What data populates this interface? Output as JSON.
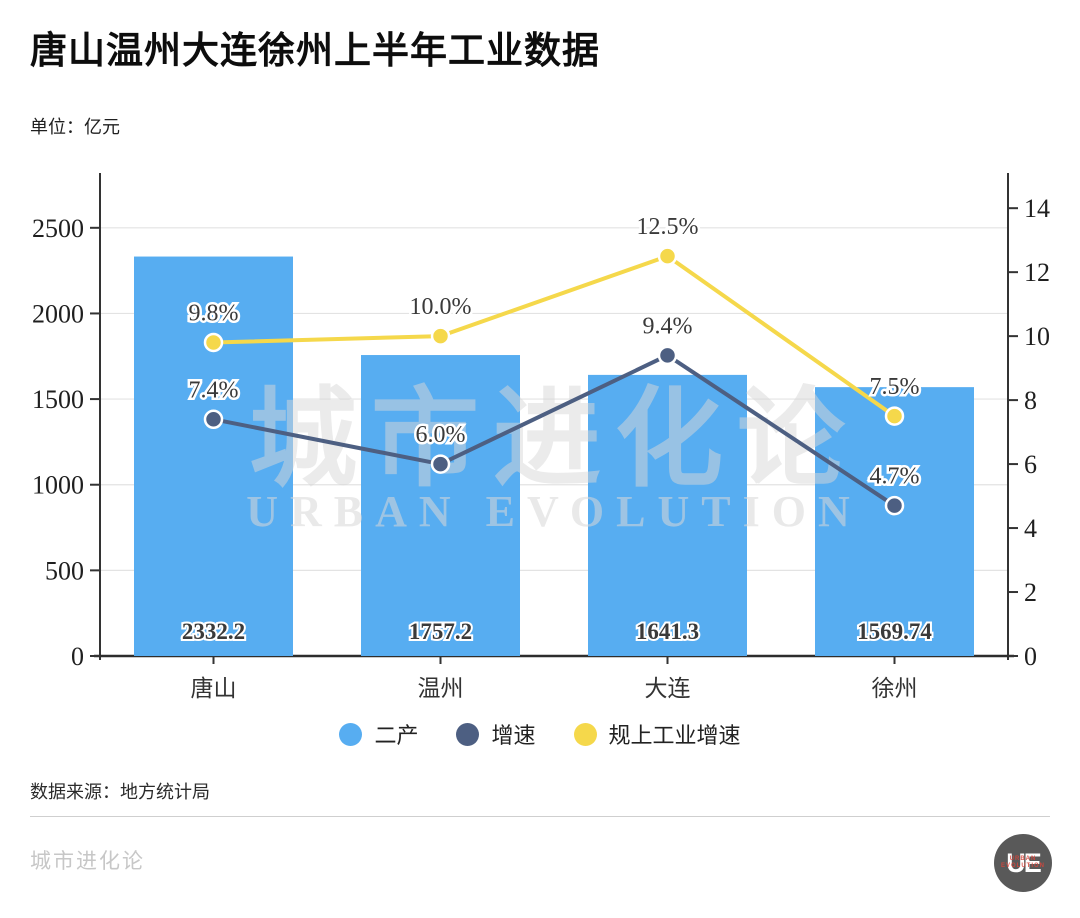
{
  "header": {
    "title": "唐山温州大连徐州上半年工业数据",
    "unit_label": "单位：亿元"
  },
  "chart_data": {
    "type": "bar",
    "title": "唐山温州大连徐州上半年工业数据",
    "categories": [
      "唐山",
      "温州",
      "大连",
      "徐州"
    ],
    "series": [
      {
        "name": "二产",
        "type": "bar",
        "axis": "left",
        "color": "#57adf1",
        "values": [
          2332.2,
          1757.2,
          1641.3,
          1569.74
        ],
        "labels": [
          "2332.2",
          "1757.2",
          "1641.3",
          "1569.74"
        ]
      },
      {
        "name": "增速",
        "type": "line",
        "axis": "right",
        "color": "#4d5f82",
        "values": [
          7.4,
          6.0,
          9.4,
          4.7
        ],
        "labels": [
          "7.4%",
          "6.0%",
          "9.4%",
          "4.7%"
        ]
      },
      {
        "name": "规上工业增速",
        "type": "line",
        "axis": "right",
        "color": "#f5d84b",
        "values": [
          9.8,
          10.0,
          12.5,
          7.5
        ],
        "labels": [
          "9.8%",
          "10.0%",
          "12.5%",
          "7.5%"
        ]
      }
    ],
    "left_axis": {
      "ticks": [
        0,
        500,
        1000,
        1500,
        2000,
        2500
      ],
      "range": [
        0,
        2820
      ]
    },
    "right_axis": {
      "ticks": [
        0,
        2,
        4,
        6,
        8,
        10,
        12,
        14
      ],
      "range": [
        0,
        15.1
      ]
    },
    "grid": true,
    "legend_position": "bottom",
    "axis_color": "#333333",
    "grid_color": "#e3e3e3",
    "label_color": "#3a3a3a"
  },
  "watermark": {
    "line1": "城市进化论",
    "line2": "URBAN EVOLUTION"
  },
  "legend": {
    "items": [
      {
        "label": "二产"
      },
      {
        "label": "增速"
      },
      {
        "label": "规上工业增速"
      }
    ]
  },
  "footer": {
    "source": "数据来源：地方统计局",
    "brand": "城市进化论",
    "logo_text": "UE",
    "logo_sub1": "URBAN",
    "logo_sub2": "EVOLUTION"
  }
}
